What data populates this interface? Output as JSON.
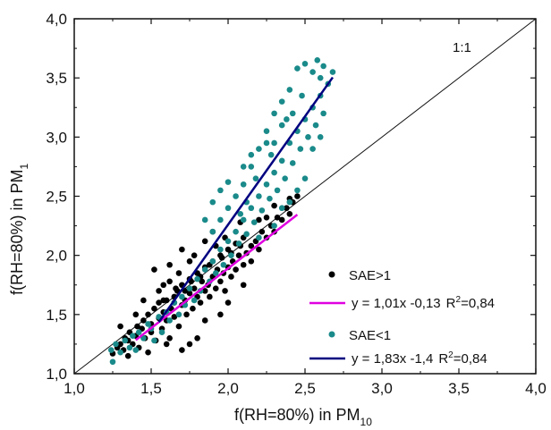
{
  "chart_data": {
    "type": "scatter",
    "xlabel": "f(RH=80%) in PM",
    "xlabel_sub": "10",
    "ylabel": "f(RH=80%) in PM",
    "ylabel_sub": "1",
    "xlim": [
      1.0,
      4.0
    ],
    "ylim": [
      1.0,
      4.0
    ],
    "xticks": [
      "1,0",
      "1,5",
      "2,0",
      "2,5",
      "3,0",
      "3,5",
      "4,0"
    ],
    "yticks": [
      "1,0",
      "1,5",
      "2,0",
      "2,5",
      "3,0",
      "3,5",
      "4,0"
    ],
    "grid": false,
    "legend_position": "bottom-right",
    "one_to_one_label": "1:1",
    "series": [
      {
        "name": "SAE>1",
        "color": "#000000",
        "points": [
          [
            1.25,
            1.17
          ],
          [
            1.28,
            1.22
          ],
          [
            1.3,
            1.25
          ],
          [
            1.32,
            1.2
          ],
          [
            1.33,
            1.3
          ],
          [
            1.35,
            1.28
          ],
          [
            1.36,
            1.35
          ],
          [
            1.38,
            1.25
          ],
          [
            1.4,
            1.32
          ],
          [
            1.41,
            1.4
          ],
          [
            1.42,
            1.22
          ],
          [
            1.44,
            1.38
          ],
          [
            1.45,
            1.45
          ],
          [
            1.46,
            1.3
          ],
          [
            1.48,
            1.5
          ],
          [
            1.5,
            1.42
          ],
          [
            1.5,
            1.35
          ],
          [
            1.52,
            1.55
          ],
          [
            1.53,
            1.28
          ],
          [
            1.55,
            1.47
          ],
          [
            1.55,
            1.6
          ],
          [
            1.57,
            1.38
          ],
          [
            1.58,
            1.52
          ],
          [
            1.6,
            1.45
          ],
          [
            1.6,
            1.62
          ],
          [
            1.62,
            1.3
          ],
          [
            1.63,
            1.55
          ],
          [
            1.65,
            1.65
          ],
          [
            1.65,
            1.48
          ],
          [
            1.67,
            1.7
          ],
          [
            1.68,
            1.4
          ],
          [
            1.7,
            1.58
          ],
          [
            1.7,
            1.75
          ],
          [
            1.72,
            1.62
          ],
          [
            1.73,
            1.5
          ],
          [
            1.75,
            1.68
          ],
          [
            1.75,
            1.8
          ],
          [
            1.77,
            1.55
          ],
          [
            1.78,
            1.72
          ],
          [
            1.8,
            1.65
          ],
          [
            1.8,
            1.85
          ],
          [
            1.82,
            1.6
          ],
          [
            1.83,
            1.78
          ],
          [
            1.85,
            1.7
          ],
          [
            1.85,
            1.9
          ],
          [
            1.87,
            1.75
          ],
          [
            1.88,
            1.65
          ],
          [
            1.9,
            1.82
          ],
          [
            1.9,
            1.95
          ],
          [
            1.92,
            1.72
          ],
          [
            1.93,
            1.88
          ],
          [
            1.95,
            1.78
          ],
          [
            1.95,
            2.0
          ],
          [
            1.97,
            1.85
          ],
          [
            1.98,
            1.7
          ],
          [
            2.0,
            1.9
          ],
          [
            2.0,
            2.05
          ],
          [
            2.02,
            1.82
          ],
          [
            2.03,
            1.95
          ],
          [
            2.05,
            1.88
          ],
          [
            2.05,
            2.1
          ],
          [
            2.07,
            2.0
          ],
          [
            2.1,
            1.92
          ],
          [
            2.1,
            2.15
          ],
          [
            2.12,
            2.02
          ],
          [
            2.15,
            2.08
          ],
          [
            2.15,
            1.95
          ],
          [
            2.18,
            2.12
          ],
          [
            2.2,
            2.05
          ],
          [
            2.22,
            2.2
          ],
          [
            2.25,
            2.15
          ],
          [
            2.28,
            2.25
          ],
          [
            2.3,
            2.2
          ],
          [
            2.32,
            2.32
          ],
          [
            2.35,
            2.3
          ],
          [
            2.38,
            2.4
          ],
          [
            2.4,
            2.35
          ],
          [
            2.42,
            2.45
          ],
          [
            2.45,
            2.5
          ],
          [
            2.4,
            2.48
          ],
          [
            1.52,
            1.88
          ],
          [
            1.58,
            1.75
          ],
          [
            1.68,
            1.85
          ],
          [
            1.62,
            1.78
          ],
          [
            1.75,
            1.95
          ],
          [
            1.7,
            2.05
          ],
          [
            1.85,
            2.12
          ],
          [
            1.9,
            2.2
          ],
          [
            1.78,
            2.0
          ],
          [
            2.25,
            2.32
          ],
          [
            1.45,
            1.62
          ],
          [
            1.55,
            1.7
          ],
          [
            1.62,
            1.92
          ],
          [
            1.8,
            1.3
          ],
          [
            1.75,
            1.25
          ],
          [
            1.95,
            1.5
          ],
          [
            2.1,
            1.75
          ],
          [
            1.7,
            1.2
          ],
          [
            1.85,
            1.45
          ],
          [
            2.0,
            1.6
          ],
          [
            1.4,
            1.5
          ],
          [
            1.3,
            1.4
          ],
          [
            1.35,
            1.15
          ],
          [
            1.48,
            1.18
          ],
          [
            1.6,
            1.25
          ],
          [
            2.08,
            2.28
          ],
          [
            2.2,
            2.3
          ],
          [
            2.3,
            2.42
          ],
          [
            1.92,
            2.08
          ],
          [
            1.98,
            2.15
          ],
          [
            1.65,
            1.6
          ],
          [
            1.72,
            1.7
          ],
          [
            1.82,
            1.82
          ],
          [
            1.88,
            1.92
          ],
          [
            1.96,
            1.98
          ],
          [
            2.02,
            2.02
          ],
          [
            2.08,
            2.08
          ],
          [
            1.58,
            1.62
          ],
          [
            1.66,
            1.72
          ],
          [
            1.76,
            1.78
          ]
        ]
      },
      {
        "name": "SAE<1",
        "color": "#1a8a8a",
        "points": [
          [
            1.25,
            1.1
          ],
          [
            1.24,
            1.2
          ],
          [
            1.27,
            1.25
          ],
          [
            1.3,
            1.18
          ],
          [
            1.33,
            1.28
          ],
          [
            1.36,
            1.22
          ],
          [
            1.38,
            1.32
          ],
          [
            1.4,
            1.2
          ],
          [
            1.42,
            1.35
          ],
          [
            1.45,
            1.3
          ],
          [
            1.48,
            1.42
          ],
          [
            1.5,
            1.38
          ],
          [
            1.52,
            1.28
          ],
          [
            1.55,
            1.48
          ],
          [
            1.57,
            1.35
          ],
          [
            1.6,
            1.52
          ],
          [
            1.62,
            1.45
          ],
          [
            1.65,
            1.6
          ],
          [
            1.68,
            1.5
          ],
          [
            1.7,
            1.65
          ],
          [
            1.72,
            1.58
          ],
          [
            1.75,
            1.72
          ],
          [
            1.78,
            1.62
          ],
          [
            1.8,
            1.8
          ],
          [
            1.82,
            1.7
          ],
          [
            1.85,
            1.88
          ],
          [
            1.88,
            1.78
          ],
          [
            1.9,
            1.95
          ],
          [
            1.92,
            1.85
          ],
          [
            1.95,
            2.05
          ],
          [
            1.97,
            1.92
          ],
          [
            2.0,
            2.12
          ],
          [
            2.02,
            2.0
          ],
          [
            2.05,
            2.2
          ],
          [
            2.07,
            2.1
          ],
          [
            2.1,
            2.3
          ],
          [
            2.12,
            2.18
          ],
          [
            2.15,
            2.4
          ],
          [
            2.17,
            2.28
          ],
          [
            2.2,
            2.5
          ],
          [
            2.22,
            2.38
          ],
          [
            2.25,
            2.6
          ],
          [
            2.27,
            2.48
          ],
          [
            2.3,
            2.7
          ],
          [
            2.32,
            2.55
          ],
          [
            2.35,
            2.8
          ],
          [
            2.37,
            2.65
          ],
          [
            2.4,
            2.95
          ],
          [
            2.42,
            2.78
          ],
          [
            2.45,
            3.05
          ],
          [
            2.47,
            2.9
          ],
          [
            2.5,
            3.15
          ],
          [
            2.52,
            3.0
          ],
          [
            2.55,
            3.25
          ],
          [
            2.57,
            3.1
          ],
          [
            2.6,
            3.35
          ],
          [
            2.62,
            3.2
          ],
          [
            2.65,
            3.45
          ],
          [
            2.6,
            3.5
          ],
          [
            2.55,
            3.55
          ],
          [
            2.5,
            3.62
          ],
          [
            2.45,
            3.58
          ],
          [
            2.4,
            3.4
          ],
          [
            2.35,
            3.3
          ],
          [
            2.3,
            3.2
          ],
          [
            2.25,
            3.05
          ],
          [
            2.2,
            2.9
          ],
          [
            2.15,
            2.75
          ],
          [
            2.1,
            2.6
          ],
          [
            2.05,
            2.5
          ],
          [
            2.0,
            2.4
          ],
          [
            1.95,
            2.3
          ],
          [
            1.9,
            2.2
          ],
          [
            2.3,
            2.95
          ],
          [
            2.35,
            3.1
          ],
          [
            2.42,
            3.2
          ],
          [
            2.48,
            3.35
          ],
          [
            2.38,
            3.15
          ],
          [
            2.28,
            2.85
          ],
          [
            2.18,
            2.65
          ],
          [
            2.12,
            2.45
          ],
          [
            2.08,
            2.35
          ],
          [
            2.5,
            2.65
          ],
          [
            2.45,
            2.55
          ],
          [
            2.4,
            2.45
          ],
          [
            2.55,
            2.9
          ],
          [
            2.6,
            3.0
          ],
          [
            2.62,
            3.6
          ],
          [
            2.58,
            3.65
          ],
          [
            2.68,
            3.55
          ],
          [
            2.2,
            2.15
          ],
          [
            2.3,
            2.25
          ],
          [
            2.35,
            2.4
          ],
          [
            1.85,
            2.3
          ],
          [
            1.9,
            2.45
          ],
          [
            1.95,
            2.55
          ],
          [
            2.0,
            2.62
          ],
          [
            2.1,
            2.75
          ],
          [
            2.15,
            2.85
          ],
          [
            2.25,
            2.95
          ]
        ]
      }
    ],
    "fits": [
      {
        "label": "y = 1,01x -0,13",
        "r2_label": "R",
        "r2_sup": "2",
        "r2_value": "=0,84",
        "color": "#e000e0",
        "slope": 1.01,
        "intercept": -0.13,
        "x_range": [
          1.4,
          2.45
        ]
      },
      {
        "label": "y = 1,83x -1,4",
        "r2_label": "R",
        "r2_sup": "2",
        "r2_value": "=0,84",
        "color": "#000080",
        "slope": 1.83,
        "intercept": -1.4,
        "x_range": [
          1.55,
          2.68
        ]
      }
    ]
  }
}
